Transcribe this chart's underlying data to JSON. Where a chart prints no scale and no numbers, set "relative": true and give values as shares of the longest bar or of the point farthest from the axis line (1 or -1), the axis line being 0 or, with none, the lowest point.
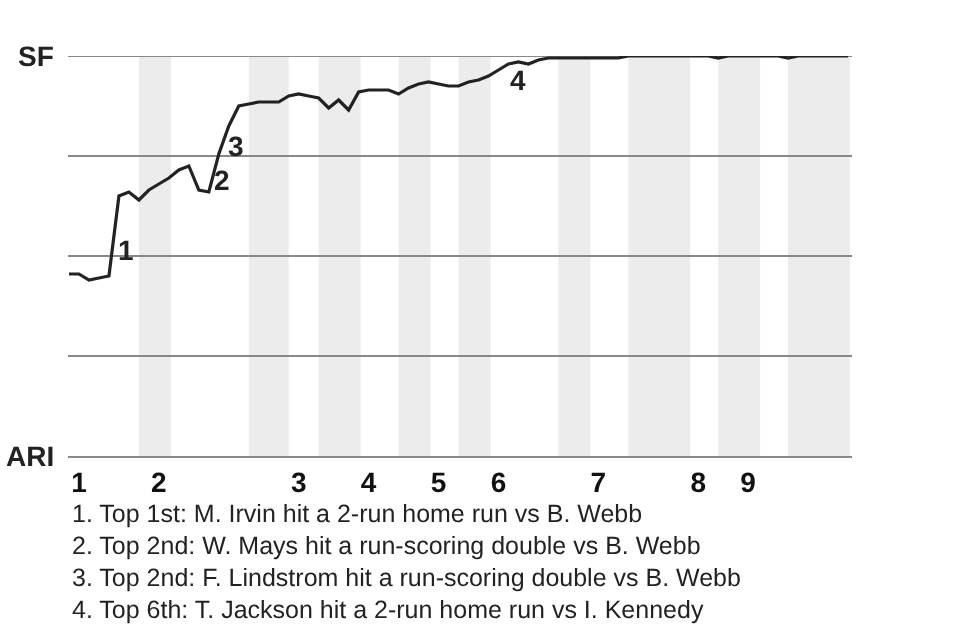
{
  "chart_data": {
    "type": "line",
    "relative": true,
    "categories": [
      null,
      "1",
      null,
      null,
      null,
      null,
      null,
      null,
      null,
      "2",
      null,
      null,
      null,
      null,
      null,
      null,
      null,
      null,
      null,
      null,
      null,
      null,
      null,
      "3",
      null,
      null,
      null,
      null,
      null,
      null,
      "4",
      null,
      null,
      null,
      null,
      null,
      null,
      "5",
      null,
      null,
      null,
      null,
      null,
      "6",
      null,
      null,
      null,
      null,
      null,
      null,
      null,
      null,
      null,
      "7",
      null,
      null,
      null,
      null,
      null,
      null,
      null,
      null,
      null,
      "8",
      null,
      null,
      null,
      null,
      "9",
      null,
      null,
      null,
      null,
      null,
      null,
      null,
      null,
      null,
      null
    ],
    "marker": "none",
    "line_style": "solid",
    "series": [
      {
        "color": "#222222",
        "values": [
          0.455,
          0.455,
          0.44,
          0.445,
          0.45,
          0.65,
          0.66,
          0.64,
          0.665,
          0.68,
          0.695,
          0.715,
          0.725,
          0.665,
          0.66,
          0.755,
          0.825,
          0.875,
          0.88,
          0.885,
          0.885,
          0.885,
          0.9,
          0.905,
          0.9,
          0.895,
          0.87,
          0.89,
          0.865,
          0.91,
          0.915,
          0.915,
          0.915,
          0.905,
          0.92,
          0.93,
          0.935,
          0.93,
          0.925,
          0.925,
          0.935,
          0.94,
          0.95,
          0.965,
          0.98,
          0.985,
          0.98,
          0.99,
          0.995,
          0.995,
          0.995,
          0.995,
          0.995,
          0.995,
          0.995,
          0.995,
          1,
          1,
          1,
          1,
          1,
          1,
          1,
          1,
          1,
          0.995,
          1,
          1,
          1,
          1,
          1,
          1,
          0.995,
          1,
          1,
          1,
          1,
          1,
          1
        ]
      }
    ],
    "ref_lines": [
      {
        "axis": "y",
        "value": 0.25,
        "color": "#888888"
      },
      {
        "axis": "y",
        "value": 0.5,
        "color": "#888888"
      },
      {
        "axis": "y",
        "value": 0.75,
        "color": "#888888"
      },
      {
        "axis": "y",
        "value": 1,
        "color": "#888888"
      }
    ],
    "annotations": [
      "SF",
      "ARI",
      "1",
      "2",
      "3",
      "4",
      "1. Top 1st: M. Irvin hit a 2-run home run vs B. Webb",
      "2. Top 2nd: W. Mays hit a run-scoring double vs B. Webb",
      "3. Top 2nd: F. Lindstrom hit a run-scoring double vs B. Webb",
      "4. Top 6th: T. Jackson hit a 2-run home run vs I. Kennedy"
    ]
  }
}
